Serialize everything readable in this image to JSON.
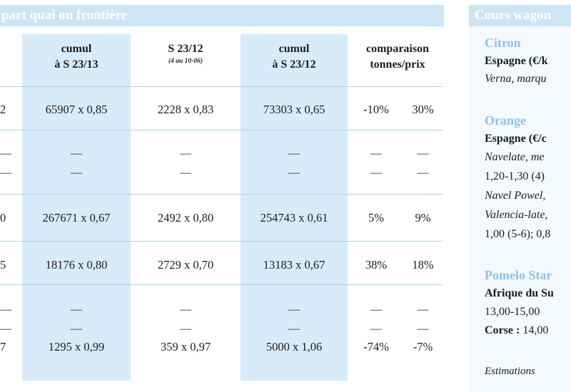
{
  "left_header": "part quai ou frontière",
  "columns": [
    {
      "line1": "cumul",
      "line2": "à S 23/13",
      "sub": ""
    },
    {
      "line1": "S 23/12",
      "line2": "",
      "sub": "(4 au 10-06)"
    },
    {
      "line1": "cumul",
      "line2": "à S 23/12",
      "sub": ""
    },
    {
      "line1": "comparaison",
      "line2": "tonnes/prix",
      "sub": ""
    }
  ],
  "rows": [
    {
      "lead": "2",
      "c1": "65907 x 0,85",
      "c2": "2228 x 0,83",
      "c3": "73303 x 0,65",
      "c4a": "-10%",
      "c4b": "30%"
    },
    {
      "lead": "—",
      "c1": "—",
      "c2": "—",
      "c3": "—",
      "c4a": "—",
      "c4b": "—"
    },
    {
      "lead": "—",
      "c1": "—",
      "c2": "—",
      "c3": "—",
      "c4a": "—",
      "c4b": "—"
    },
    {
      "lead": "0",
      "c1": "267671 x 0,67",
      "c2": "2492 x 0,80",
      "c3": "254743 x 0,61",
      "c4a": "5%",
      "c4b": "9%"
    },
    {
      "lead": "5",
      "c1": "18176 x 0,80",
      "c2": "2729 x 0,70",
      "c3": "13183 x 0,67",
      "c4a": "38%",
      "c4b": "18%"
    },
    {
      "lead": "—",
      "c1": "—",
      "c2": "—",
      "c3": "—",
      "c4a": "—",
      "c4b": "—"
    },
    {
      "lead": "—",
      "c1": "—",
      "c2": "—",
      "c3": "—",
      "c4a": "—",
      "c4b": "—"
    },
    {
      "lead": "7",
      "c1": "1295 x 0,99",
      "c2": "359 x 0,97",
      "c3": "5000 x 1,06",
      "c4a": "-74%",
      "c4b": "-7%"
    }
  ],
  "right_header": "Cours wagon",
  "right_panel": {
    "citron_title": "Citron",
    "citron_origin": "Espagne (€/k",
    "citron_variety": "Verna, marqu",
    "orange_title": "Orange",
    "orange_origin": "Espagne (€/c",
    "orange_line1": "Navelate, me",
    "orange_line2": "1,20-1,30 (4)",
    "orange_line3": "Navel Powel,",
    "orange_line4": "Valencia-late,",
    "orange_line5": "1,00 (5-6); 0,8",
    "pomelo_title": "Pomelo Star",
    "pomelo_origin": "Afrique du Su",
    "pomelo_price": "13,00-15,00",
    "corse_label": "Corse :",
    "corse_price": "14,00",
    "estimations": "Estimations"
  }
}
